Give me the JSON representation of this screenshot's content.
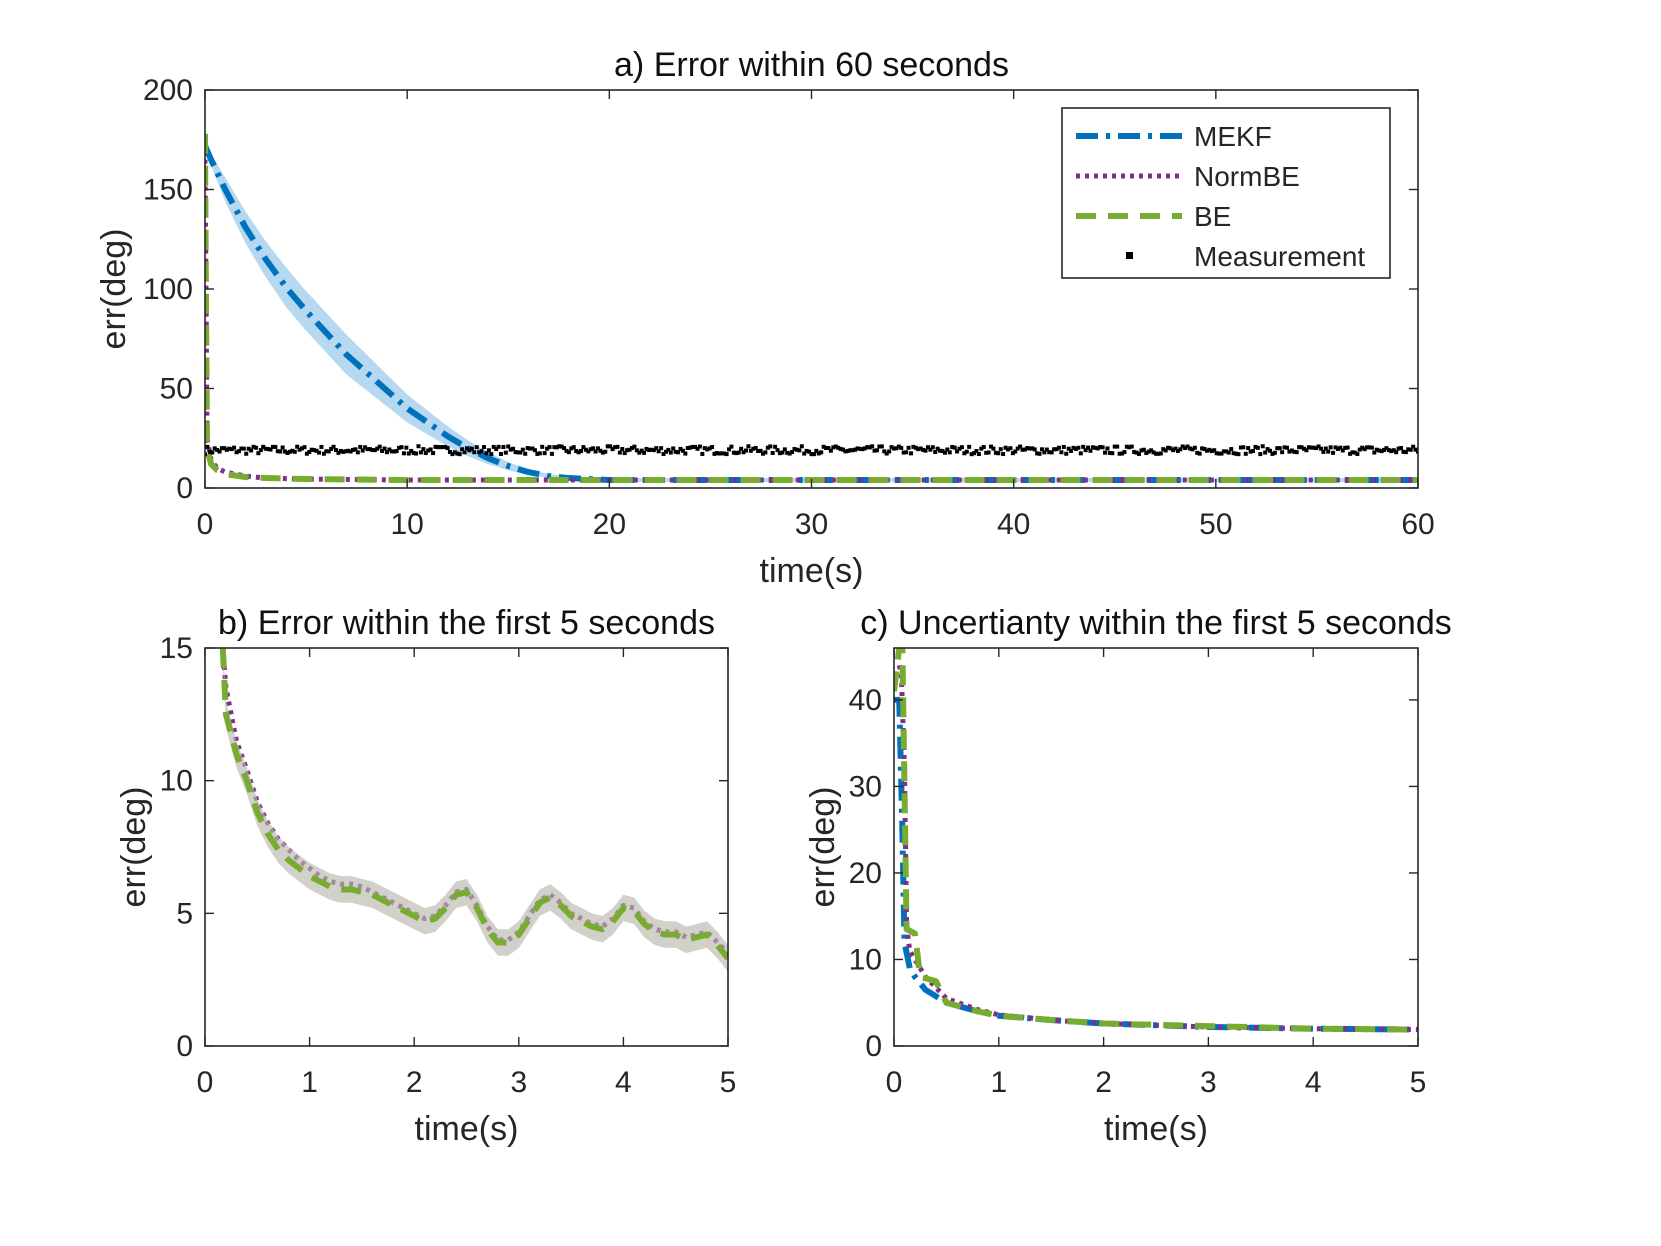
{
  "chart_data": [
    {
      "type": "line",
      "title": "a) Error within 60 seconds",
      "xlabel": "time(s)",
      "ylabel": "err(deg)",
      "xlim": [
        0,
        60
      ],
      "ylim": [
        0,
        200
      ],
      "xticks": [
        0,
        10,
        20,
        30,
        40,
        50,
        60
      ],
      "yticks": [
        0,
        50,
        100,
        150,
        200
      ],
      "legend": {
        "position": "top-right",
        "entries": [
          "MEKF",
          "NormBE",
          "BE",
          "Measurement"
        ]
      },
      "series": [
        {
          "name": "MEKF",
          "color": "#0072BD",
          "style": "dashdot",
          "x": [
            0,
            0.3,
            1,
            2,
            3,
            4,
            5,
            6,
            7,
            8,
            9,
            10,
            11,
            12,
            13,
            14,
            15,
            16,
            17,
            18,
            20,
            25,
            30,
            40,
            50,
            60
          ],
          "y": [
            172,
            165,
            150,
            131,
            115,
            101,
            89,
            78,
            67,
            58,
            49,
            40,
            33,
            26,
            20,
            15,
            11,
            8,
            6,
            5,
            4,
            4,
            4,
            4,
            4,
            4
          ],
          "band": [
            2,
            3,
            6,
            8,
            9,
            10,
            10,
            10,
            10,
            9,
            8,
            7,
            6,
            5,
            4,
            3,
            2,
            1.5,
            1,
            1,
            1,
            1,
            1,
            1,
            1,
            1
          ]
        },
        {
          "name": "NormBE",
          "color": "#7E2F8E",
          "style": "dotted",
          "x": [
            0,
            0.05,
            0.1,
            0.3,
            0.6,
            1,
            2,
            3,
            5,
            10,
            20,
            30,
            40,
            50,
            60
          ],
          "y": [
            165,
            100,
            25,
            14,
            10,
            8,
            6,
            5,
            4.5,
            4,
            4,
            4,
            4,
            4,
            4
          ]
        },
        {
          "name": "BE",
          "color": "#77AC30",
          "style": "dashed",
          "x": [
            0,
            0.05,
            0.1,
            0.3,
            0.6,
            1,
            2,
            3,
            5,
            10,
            20,
            30,
            40,
            50,
            60
          ],
          "y": [
            178,
            90,
            20,
            12,
            9,
            7,
            5.5,
            5,
            4.5,
            4,
            4,
            4,
            4,
            4,
            4
          ]
        },
        {
          "name": "Measurement",
          "color": "#000000",
          "style": "points",
          "level": 19,
          "noise": 4
        }
      ]
    },
    {
      "type": "line",
      "title": "b) Error within the first 5 seconds",
      "xlabel": "time(s)",
      "ylabel": "err(deg)",
      "xlim": [
        0,
        5
      ],
      "ylim": [
        0,
        15
      ],
      "xticks": [
        0,
        1,
        2,
        3,
        4,
        5
      ],
      "yticks": [
        0,
        5,
        10,
        15
      ],
      "series": [
        {
          "name": "NormBE",
          "color": "#7E2F8E",
          "style": "dotted",
          "x": [
            0.17,
            0.2,
            0.3,
            0.4,
            0.5,
            0.6,
            0.7,
            0.8,
            0.9,
            1.0,
            1.1,
            1.2,
            1.3,
            1.4,
            1.5,
            1.6,
            1.7,
            1.8,
            1.9,
            2.0,
            2.1,
            2.2,
            2.3,
            2.4,
            2.5,
            2.6,
            2.7,
            2.8,
            2.9,
            3.0,
            3.1,
            3.2,
            3.3,
            3.4,
            3.5,
            3.6,
            3.7,
            3.8,
            3.9,
            4.0,
            4.1,
            4.2,
            4.3,
            4.4,
            4.5,
            4.6,
            4.7,
            4.8,
            4.9,
            5.0
          ],
          "y": [
            15,
            13.5,
            11.5,
            10.4,
            9.2,
            8.4,
            7.8,
            7.4,
            7.0,
            6.7,
            6.4,
            6.2,
            6.1,
            6.1,
            6.0,
            5.8,
            5.6,
            5.4,
            5.2,
            5.0,
            4.8,
            4.9,
            5.3,
            5.8,
            5.9,
            5.3,
            4.5,
            4.0,
            4.0,
            4.3,
            4.9,
            5.5,
            5.7,
            5.4,
            5.0,
            4.8,
            4.6,
            4.5,
            4.8,
            5.3,
            5.2,
            4.7,
            4.4,
            4.3,
            4.3,
            4.1,
            4.2,
            4.3,
            3.9,
            3.5
          ]
        },
        {
          "name": "BE",
          "color": "#77AC30",
          "style": "dashed",
          "x": [
            0.17,
            0.2,
            0.3,
            0.4,
            0.5,
            0.6,
            0.7,
            0.8,
            0.9,
            1.0,
            1.1,
            1.2,
            1.3,
            1.4,
            1.5,
            1.6,
            1.7,
            1.8,
            1.9,
            2.0,
            2.1,
            2.2,
            2.3,
            2.4,
            2.5,
            2.6,
            2.7,
            2.8,
            2.9,
            3.0,
            3.1,
            3.2,
            3.3,
            3.4,
            3.5,
            3.6,
            3.7,
            3.8,
            3.9,
            4.0,
            4.1,
            4.2,
            4.3,
            4.4,
            4.5,
            4.6,
            4.7,
            4.8,
            4.9,
            5.0
          ],
          "y": [
            15,
            12.5,
            11.0,
            10.0,
            8.8,
            8.0,
            7.4,
            7.0,
            6.7,
            6.4,
            6.2,
            6.0,
            5.9,
            5.9,
            5.8,
            5.7,
            5.5,
            5.3,
            5.1,
            4.9,
            4.7,
            4.8,
            5.2,
            5.7,
            5.8,
            5.2,
            4.4,
            3.9,
            3.9,
            4.2,
            4.8,
            5.4,
            5.6,
            5.3,
            4.9,
            4.7,
            4.5,
            4.4,
            4.7,
            5.2,
            5.1,
            4.6,
            4.3,
            4.2,
            4.2,
            4.0,
            4.1,
            4.2,
            3.8,
            3.3
          ],
          "band": 0.5
        }
      ]
    },
    {
      "type": "line",
      "title": "c) Uncertianty within the first 5 seconds",
      "xlabel": "time(s)",
      "ylabel": "err(deg)",
      "xlim": [
        0,
        5
      ],
      "ylim": [
        0,
        46
      ],
      "xticks": [
        0,
        1,
        2,
        3,
        4,
        5
      ],
      "yticks": [
        0,
        10,
        20,
        30,
        40
      ],
      "series": [
        {
          "name": "MEKF",
          "color": "#0072BD",
          "style": "dashdot",
          "x": [
            0,
            0.05,
            0.08,
            0.1,
            0.15,
            0.2,
            0.3,
            0.5,
            0.8,
            1.0,
            1.5,
            2.0,
            3.0,
            4.0,
            5.0
          ],
          "y": [
            40,
            40,
            25,
            12,
            9,
            8,
            6.5,
            5,
            4,
            3.5,
            3,
            2.6,
            2.2,
            2.0,
            1.9
          ]
        },
        {
          "name": "NormBE",
          "color": "#7E2F8E",
          "style": "dotted",
          "x": [
            0.05,
            0.07,
            0.1,
            0.12,
            0.15,
            0.2,
            0.3,
            0.5,
            0.8,
            1.0,
            1.5,
            2.0,
            3.0,
            4.0,
            5.0
          ],
          "y": [
            44,
            43,
            32,
            14,
            11,
            10,
            8,
            5.5,
            4.2,
            3.6,
            3.0,
            2.6,
            2.2,
            2.0,
            1.9
          ]
        },
        {
          "name": "BE",
          "color": "#77AC30",
          "style": "dashed",
          "x": [
            0,
            0.05,
            0.08,
            0.1,
            0.12,
            0.2,
            0.25,
            0.4,
            0.5,
            0.8,
            1.0,
            1.5,
            2.0,
            3.0,
            4.0,
            5.0
          ],
          "y": [
            41,
            46,
            46,
            30,
            13.5,
            13,
            8,
            7.5,
            5,
            4,
            3.5,
            3,
            2.6,
            2.3,
            2.0,
            1.9
          ]
        }
      ]
    }
  ]
}
